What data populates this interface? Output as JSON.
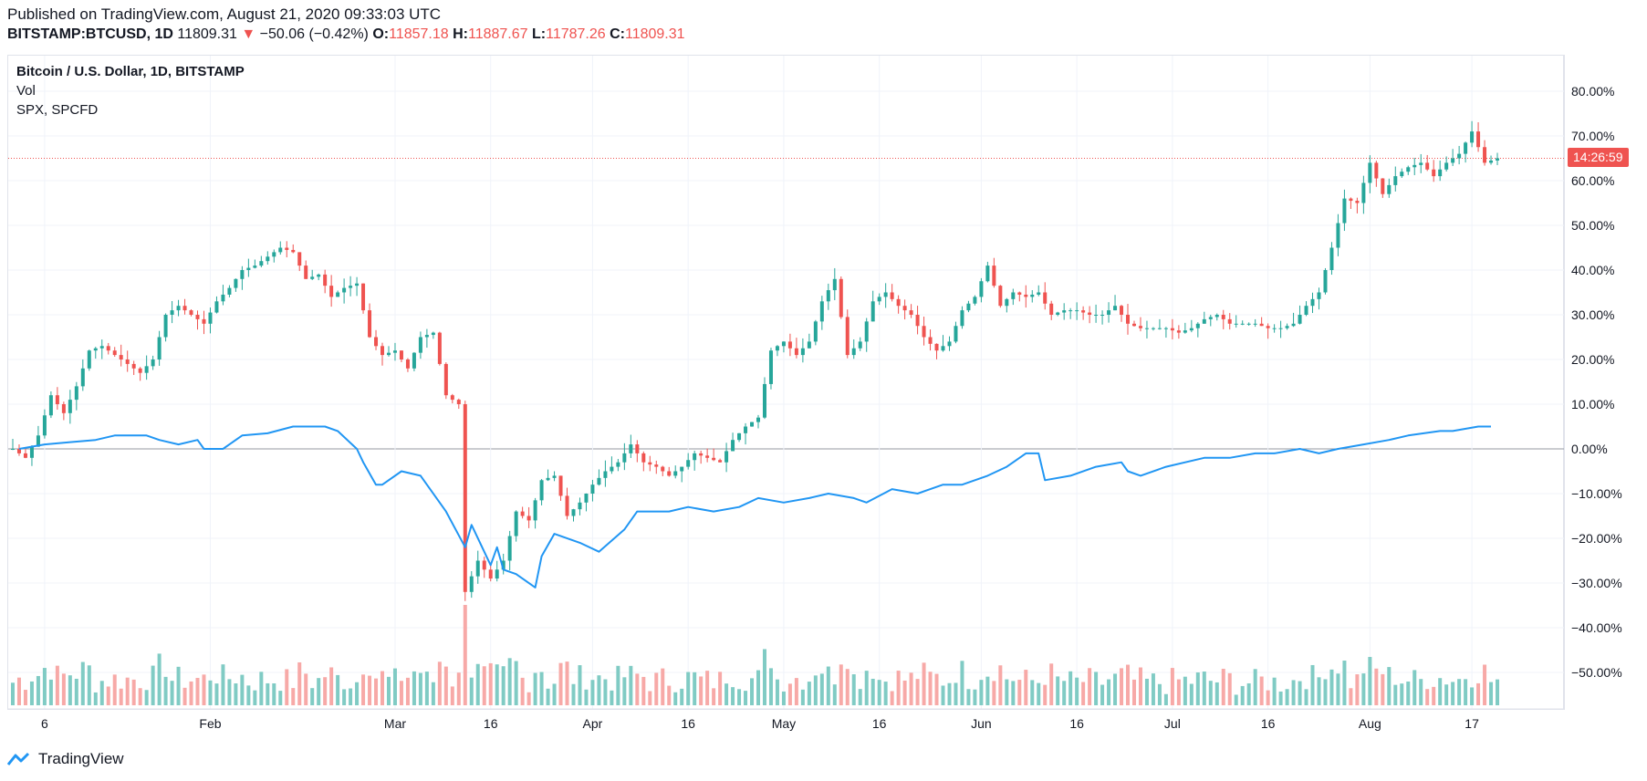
{
  "header": {
    "published": "Published on TradingView.com, August 21, 2020 09:33:03 UTC",
    "symbol": "BITSTAMP:BTCUSD, 1D",
    "last": "11809.31",
    "change": "−50.06 (−0.42%)",
    "o_label": "O:",
    "o": "11857.18",
    "h_label": "H:",
    "h": "11887.67",
    "l_label": "L:",
    "l": "11787.26",
    "c_label": "C:",
    "c": "11809.31",
    "down_arrow": "▼"
  },
  "legend": {
    "main": "Bitcoin / U.S. Dollar, 1D, BITSTAMP",
    "vol": "Vol",
    "compare": "SPX, SPCFD"
  },
  "countdown": "14:26:59",
  "footer": {
    "brand": "TradingView"
  },
  "colors": {
    "up": "#26a69a",
    "down": "#ef5350",
    "spx": "#2196f3",
    "vol_up": "#80cbc4",
    "vol_down": "#f7a9a7"
  },
  "chart_data": {
    "type": "line",
    "title": "Bitcoin / U.S. Dollar, 1D, BITSTAMP",
    "y_unit": "percent change",
    "ylim": [
      -58,
      88
    ],
    "y_ticks": [
      80,
      70,
      60,
      50,
      40,
      30,
      20,
      10,
      0,
      -10,
      -20,
      -30,
      -40,
      -50
    ],
    "y_tick_labels": [
      "80.00%",
      "70.00%",
      "60.00%",
      "50.00%",
      "40.00%",
      "30.00%",
      "20.00%",
      "10.00%",
      "0.00%",
      "−10.00%",
      "−20.00%",
      "−30.00%",
      "−40.00%",
      "−50.00%"
    ],
    "x_range": [
      "2020-01-01",
      "2020-08-31"
    ],
    "x_ticks": [
      {
        "date": "2020-01-06",
        "label": "6"
      },
      {
        "date": "2020-02-01",
        "label": "Feb"
      },
      {
        "date": "2020-03-01",
        "label": "Mar"
      },
      {
        "date": "2020-03-16",
        "label": "16"
      },
      {
        "date": "2020-04-01",
        "label": "Apr"
      },
      {
        "date": "2020-04-16",
        "label": "16"
      },
      {
        "date": "2020-05-01",
        "label": "May"
      },
      {
        "date": "2020-05-16",
        "label": "16"
      },
      {
        "date": "2020-06-01",
        "label": "Jun"
      },
      {
        "date": "2020-06-16",
        "label": "16"
      },
      {
        "date": "2020-07-01",
        "label": "Jul"
      },
      {
        "date": "2020-07-16",
        "label": "16"
      },
      {
        "date": "2020-08-01",
        "label": "Aug"
      },
      {
        "date": "2020-08-17",
        "label": "17"
      }
    ],
    "btc_close_pct": [
      [
        "2020-01-01",
        0
      ],
      [
        "2020-01-03",
        -2
      ],
      [
        "2020-01-05",
        3
      ],
      [
        "2020-01-07",
        12
      ],
      [
        "2020-01-09",
        8
      ],
      [
        "2020-01-11",
        14
      ],
      [
        "2020-01-13",
        22
      ],
      [
        "2020-01-15",
        23
      ],
      [
        "2020-01-17",
        21
      ],
      [
        "2020-01-19",
        19
      ],
      [
        "2020-01-21",
        17
      ],
      [
        "2020-01-23",
        20
      ],
      [
        "2020-01-25",
        30
      ],
      [
        "2020-01-27",
        32
      ],
      [
        "2020-01-29",
        30
      ],
      [
        "2020-01-31",
        28
      ],
      [
        "2020-02-02",
        33
      ],
      [
        "2020-02-04",
        36
      ],
      [
        "2020-02-06",
        40
      ],
      [
        "2020-02-08",
        41
      ],
      [
        "2020-02-10",
        43
      ],
      [
        "2020-02-12",
        45
      ],
      [
        "2020-02-14",
        44
      ],
      [
        "2020-02-16",
        38
      ],
      [
        "2020-02-18",
        39
      ],
      [
        "2020-02-20",
        34
      ],
      [
        "2020-02-22",
        36
      ],
      [
        "2020-02-24",
        37
      ],
      [
        "2020-02-26",
        25
      ],
      [
        "2020-02-28",
        21
      ],
      [
        "2020-03-01",
        22
      ],
      [
        "2020-03-03",
        18
      ],
      [
        "2020-03-05",
        25
      ],
      [
        "2020-03-07",
        26
      ],
      [
        "2020-03-09",
        12
      ],
      [
        "2020-03-11",
        10
      ],
      [
        "2020-03-12",
        -32
      ],
      [
        "2020-03-14",
        -25
      ],
      [
        "2020-03-16",
        -29
      ],
      [
        "2020-03-18",
        -25
      ],
      [
        "2020-03-20",
        -14
      ],
      [
        "2020-03-22",
        -16
      ],
      [
        "2020-03-24",
        -7
      ],
      [
        "2020-03-26",
        -6
      ],
      [
        "2020-03-28",
        -15
      ],
      [
        "2020-03-30",
        -12
      ],
      [
        "2020-04-01",
        -8
      ],
      [
        "2020-04-03",
        -5
      ],
      [
        "2020-04-05",
        -3
      ],
      [
        "2020-04-07",
        1
      ],
      [
        "2020-04-09",
        -3
      ],
      [
        "2020-04-11",
        -4
      ],
      [
        "2020-04-13",
        -6
      ],
      [
        "2020-04-15",
        -4
      ],
      [
        "2020-04-17",
        -1
      ],
      [
        "2020-04-19",
        -2
      ],
      [
        "2020-04-21",
        -3
      ],
      [
        "2020-04-23",
        2
      ],
      [
        "2020-04-25",
        5
      ],
      [
        "2020-04-27",
        7
      ],
      [
        "2020-04-29",
        22
      ],
      [
        "2020-05-01",
        24
      ],
      [
        "2020-05-03",
        21
      ],
      [
        "2020-05-05",
        24
      ],
      [
        "2020-05-07",
        33
      ],
      [
        "2020-05-09",
        38
      ],
      [
        "2020-05-11",
        21
      ],
      [
        "2020-05-13",
        24
      ],
      [
        "2020-05-15",
        33
      ],
      [
        "2020-05-17",
        35
      ],
      [
        "2020-05-19",
        32
      ],
      [
        "2020-05-21",
        30
      ],
      [
        "2020-05-23",
        25
      ],
      [
        "2020-05-25",
        22
      ],
      [
        "2020-05-27",
        24
      ],
      [
        "2020-05-29",
        31
      ],
      [
        "2020-05-31",
        34
      ],
      [
        "2020-06-02",
        41
      ],
      [
        "2020-06-04",
        32
      ],
      [
        "2020-06-06",
        35
      ],
      [
        "2020-06-08",
        34
      ],
      [
        "2020-06-10",
        35
      ],
      [
        "2020-06-12",
        30
      ],
      [
        "2020-06-14",
        31
      ],
      [
        "2020-06-16",
        31
      ],
      [
        "2020-06-18",
        30
      ],
      [
        "2020-06-20",
        30
      ],
      [
        "2020-06-22",
        32
      ],
      [
        "2020-06-24",
        28
      ],
      [
        "2020-06-26",
        27
      ],
      [
        "2020-06-28",
        27
      ],
      [
        "2020-06-30",
        27
      ],
      [
        "2020-07-02",
        26
      ],
      [
        "2020-07-04",
        27
      ],
      [
        "2020-07-06",
        29
      ],
      [
        "2020-07-08",
        30
      ],
      [
        "2020-07-10",
        28
      ],
      [
        "2020-07-12",
        28
      ],
      [
        "2020-07-14",
        28
      ],
      [
        "2020-07-16",
        27
      ],
      [
        "2020-07-18",
        27
      ],
      [
        "2020-07-20",
        28
      ],
      [
        "2020-07-22",
        32
      ],
      [
        "2020-07-24",
        35
      ],
      [
        "2020-07-26",
        45
      ],
      [
        "2020-07-28",
        56
      ],
      [
        "2020-07-30",
        55
      ],
      [
        "2020-08-01",
        64
      ],
      [
        "2020-08-03",
        57
      ],
      [
        "2020-08-05",
        61
      ],
      [
        "2020-08-07",
        63
      ],
      [
        "2020-08-09",
        64
      ],
      [
        "2020-08-11",
        61
      ],
      [
        "2020-08-13",
        64
      ],
      [
        "2020-08-15",
        66
      ],
      [
        "2020-08-17",
        71
      ],
      [
        "2020-08-19",
        64
      ],
      [
        "2020-08-21",
        65
      ]
    ],
    "series": [
      {
        "name": "SPX, SPCFD",
        "values": [
          [
            "2020-01-02",
            0
          ],
          [
            "2020-01-06",
            1
          ],
          [
            "2020-01-10",
            1.5
          ],
          [
            "2020-01-14",
            2
          ],
          [
            "2020-01-17",
            3
          ],
          [
            "2020-01-22",
            3
          ],
          [
            "2020-01-24",
            2
          ],
          [
            "2020-01-27",
            1
          ],
          [
            "2020-01-30",
            2
          ],
          [
            "2020-01-31",
            0
          ],
          [
            "2020-02-03",
            0
          ],
          [
            "2020-02-06",
            3
          ],
          [
            "2020-02-10",
            3.5
          ],
          [
            "2020-02-14",
            5
          ],
          [
            "2020-02-19",
            5
          ],
          [
            "2020-02-21",
            4
          ],
          [
            "2020-02-24",
            0
          ],
          [
            "2020-02-25",
            -3
          ],
          [
            "2020-02-27",
            -8
          ],
          [
            "2020-02-28",
            -8
          ],
          [
            "2020-03-02",
            -5
          ],
          [
            "2020-03-05",
            -6
          ],
          [
            "2020-03-09",
            -14
          ],
          [
            "2020-03-12",
            -22
          ],
          [
            "2020-03-13",
            -17
          ],
          [
            "2020-03-16",
            -26
          ],
          [
            "2020-03-17",
            -22
          ],
          [
            "2020-03-18",
            -27
          ],
          [
            "2020-03-20",
            -28
          ],
          [
            "2020-03-23",
            -31
          ],
          [
            "2020-03-24",
            -24
          ],
          [
            "2020-03-26",
            -19
          ],
          [
            "2020-03-30",
            -21
          ],
          [
            "2020-04-02",
            -23
          ],
          [
            "2020-04-06",
            -18
          ],
          [
            "2020-04-08",
            -14
          ],
          [
            "2020-04-13",
            -14
          ],
          [
            "2020-04-16",
            -13
          ],
          [
            "2020-04-20",
            -14
          ],
          [
            "2020-04-24",
            -13
          ],
          [
            "2020-04-27",
            -11
          ],
          [
            "2020-05-01",
            -12
          ],
          [
            "2020-05-05",
            -11
          ],
          [
            "2020-05-08",
            -10
          ],
          [
            "2020-05-12",
            -11
          ],
          [
            "2020-05-14",
            -12
          ],
          [
            "2020-05-18",
            -9
          ],
          [
            "2020-05-22",
            -10
          ],
          [
            "2020-05-26",
            -8
          ],
          [
            "2020-05-29",
            -8
          ],
          [
            "2020-06-02",
            -6
          ],
          [
            "2020-06-05",
            -4
          ],
          [
            "2020-06-08",
            -1
          ],
          [
            "2020-06-10",
            -1
          ],
          [
            "2020-06-11",
            -7
          ],
          [
            "2020-06-15",
            -6
          ],
          [
            "2020-06-19",
            -4
          ],
          [
            "2020-06-23",
            -3
          ],
          [
            "2020-06-24",
            -5
          ],
          [
            "2020-06-26",
            -6
          ],
          [
            "2020-06-30",
            -4
          ],
          [
            "2020-07-06",
            -2
          ],
          [
            "2020-07-10",
            -2
          ],
          [
            "2020-07-14",
            -1
          ],
          [
            "2020-07-17",
            -1
          ],
          [
            "2020-07-21",
            0
          ],
          [
            "2020-07-24",
            -1
          ],
          [
            "2020-07-27",
            0
          ],
          [
            "2020-07-31",
            1
          ],
          [
            "2020-08-04",
            2
          ],
          [
            "2020-08-07",
            3
          ],
          [
            "2020-08-12",
            4
          ],
          [
            "2020-08-14",
            4
          ],
          [
            "2020-08-18",
            5
          ],
          [
            "2020-08-20",
            5
          ]
        ]
      }
    ],
    "last_price_line_pct": 65,
    "grid": true
  }
}
